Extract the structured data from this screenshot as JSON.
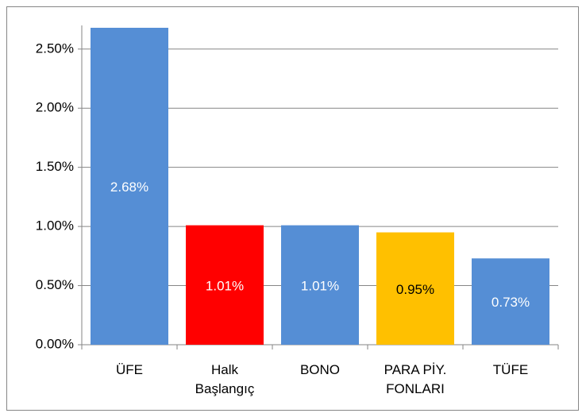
{
  "chart_data": {
    "type": "bar",
    "categories": [
      "ÜFE",
      "Halk Başlangıç",
      "BONO",
      "PARA PİY. FONLARI",
      "TÜFE"
    ],
    "values": [
      2.68,
      1.01,
      1.01,
      0.95,
      0.73
    ],
    "value_labels": [
      "2.68%",
      "1.01%",
      "1.01%",
      "0.95%",
      "0.73%"
    ],
    "colors": [
      "#558ed5",
      "#ff0000",
      "#558ed5",
      "#ffc000",
      "#558ed5"
    ],
    "value_label_colors": [
      "#ffffff",
      "#ffffff",
      "#ffffff",
      "#000000",
      "#ffffff"
    ],
    "ylim": [
      0,
      2.7
    ],
    "yticks": [
      {
        "value": 0,
        "label": "0.00%"
      },
      {
        "value": 0.5,
        "label": "0.50%"
      },
      {
        "value": 1,
        "label": "1.00%"
      },
      {
        "value": 1.5,
        "label": "1.50%"
      },
      {
        "value": 2,
        "label": "2.00%"
      },
      {
        "value": 2.5,
        "label": "2.50%"
      }
    ],
    "grid": true
  }
}
